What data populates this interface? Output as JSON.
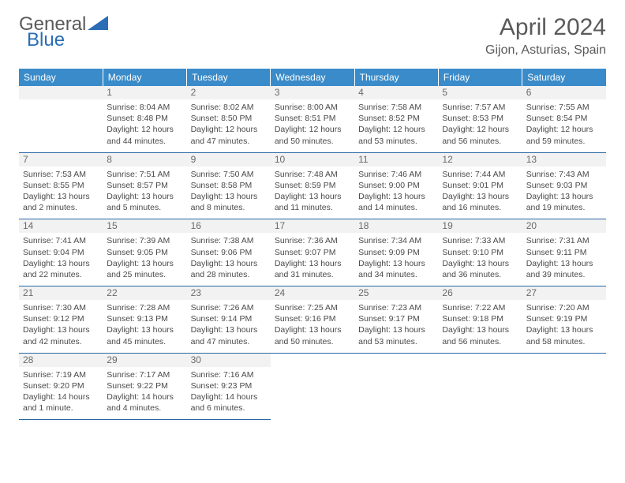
{
  "logo": {
    "text1": "General",
    "text2": "Blue"
  },
  "colors": {
    "header_bg": "#3a8bc9",
    "border": "#2867a3",
    "day_stripe": "#f2f2f2",
    "text": "#4a4a4a",
    "title": "#5a5a5a",
    "accent": "#2a6db5"
  },
  "title": "April 2024",
  "location": "Gijon, Asturias, Spain",
  "weekdays": [
    "Sunday",
    "Monday",
    "Tuesday",
    "Wednesday",
    "Thursday",
    "Friday",
    "Saturday"
  ],
  "days": {
    "1": {
      "sunrise": "8:04 AM",
      "sunset": "8:48 PM",
      "daylight": "12 hours and 44 minutes."
    },
    "2": {
      "sunrise": "8:02 AM",
      "sunset": "8:50 PM",
      "daylight": "12 hours and 47 minutes."
    },
    "3": {
      "sunrise": "8:00 AM",
      "sunset": "8:51 PM",
      "daylight": "12 hours and 50 minutes."
    },
    "4": {
      "sunrise": "7:58 AM",
      "sunset": "8:52 PM",
      "daylight": "12 hours and 53 minutes."
    },
    "5": {
      "sunrise": "7:57 AM",
      "sunset": "8:53 PM",
      "daylight": "12 hours and 56 minutes."
    },
    "6": {
      "sunrise": "7:55 AM",
      "sunset": "8:54 PM",
      "daylight": "12 hours and 59 minutes."
    },
    "7": {
      "sunrise": "7:53 AM",
      "sunset": "8:55 PM",
      "daylight": "13 hours and 2 minutes."
    },
    "8": {
      "sunrise": "7:51 AM",
      "sunset": "8:57 PM",
      "daylight": "13 hours and 5 minutes."
    },
    "9": {
      "sunrise": "7:50 AM",
      "sunset": "8:58 PM",
      "daylight": "13 hours and 8 minutes."
    },
    "10": {
      "sunrise": "7:48 AM",
      "sunset": "8:59 PM",
      "daylight": "13 hours and 11 minutes."
    },
    "11": {
      "sunrise": "7:46 AM",
      "sunset": "9:00 PM",
      "daylight": "13 hours and 14 minutes."
    },
    "12": {
      "sunrise": "7:44 AM",
      "sunset": "9:01 PM",
      "daylight": "13 hours and 16 minutes."
    },
    "13": {
      "sunrise": "7:43 AM",
      "sunset": "9:03 PM",
      "daylight": "13 hours and 19 minutes."
    },
    "14": {
      "sunrise": "7:41 AM",
      "sunset": "9:04 PM",
      "daylight": "13 hours and 22 minutes."
    },
    "15": {
      "sunrise": "7:39 AM",
      "sunset": "9:05 PM",
      "daylight": "13 hours and 25 minutes."
    },
    "16": {
      "sunrise": "7:38 AM",
      "sunset": "9:06 PM",
      "daylight": "13 hours and 28 minutes."
    },
    "17": {
      "sunrise": "7:36 AM",
      "sunset": "9:07 PM",
      "daylight": "13 hours and 31 minutes."
    },
    "18": {
      "sunrise": "7:34 AM",
      "sunset": "9:09 PM",
      "daylight": "13 hours and 34 minutes."
    },
    "19": {
      "sunrise": "7:33 AM",
      "sunset": "9:10 PM",
      "daylight": "13 hours and 36 minutes."
    },
    "20": {
      "sunrise": "7:31 AM",
      "sunset": "9:11 PM",
      "daylight": "13 hours and 39 minutes."
    },
    "21": {
      "sunrise": "7:30 AM",
      "sunset": "9:12 PM",
      "daylight": "13 hours and 42 minutes."
    },
    "22": {
      "sunrise": "7:28 AM",
      "sunset": "9:13 PM",
      "daylight": "13 hours and 45 minutes."
    },
    "23": {
      "sunrise": "7:26 AM",
      "sunset": "9:14 PM",
      "daylight": "13 hours and 47 minutes."
    },
    "24": {
      "sunrise": "7:25 AM",
      "sunset": "9:16 PM",
      "daylight": "13 hours and 50 minutes."
    },
    "25": {
      "sunrise": "7:23 AM",
      "sunset": "9:17 PM",
      "daylight": "13 hours and 53 minutes."
    },
    "26": {
      "sunrise": "7:22 AM",
      "sunset": "9:18 PM",
      "daylight": "13 hours and 56 minutes."
    },
    "27": {
      "sunrise": "7:20 AM",
      "sunset": "9:19 PM",
      "daylight": "13 hours and 58 minutes."
    },
    "28": {
      "sunrise": "7:19 AM",
      "sunset": "9:20 PM",
      "daylight": "14 hours and 1 minute."
    },
    "29": {
      "sunrise": "7:17 AM",
      "sunset": "9:22 PM",
      "daylight": "14 hours and 4 minutes."
    },
    "30": {
      "sunrise": "7:16 AM",
      "sunset": "9:23 PM",
      "daylight": "14 hours and 6 minutes."
    }
  },
  "labels": {
    "sunrise": "Sunrise: ",
    "sunset": "Sunset: ",
    "daylight": "Daylight: "
  },
  "grid_start_blank": 1,
  "days_in_month": 30
}
